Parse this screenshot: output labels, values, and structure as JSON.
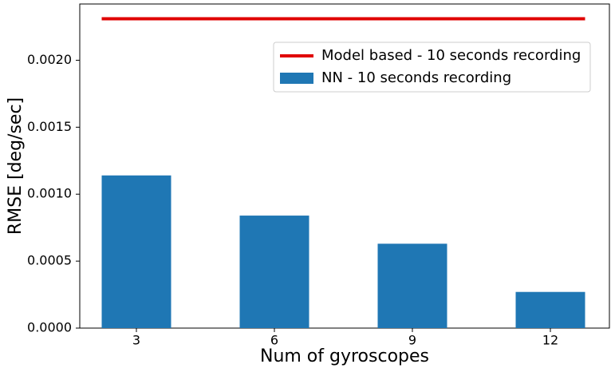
{
  "chart_data": {
    "type": "bar",
    "xlabel": "Num of gyroscopes",
    "ylabel": "RMSE [deg/sec]",
    "categories": [
      "3",
      "6",
      "9",
      "12"
    ],
    "series": [
      {
        "name": "Model based - 10 seconds recording",
        "type": "line",
        "color": "#e00000",
        "values": [
          0.00231,
          0.00231,
          0.00231,
          0.00231
        ]
      },
      {
        "name": "NN - 10 seconds recording",
        "type": "bar",
        "color": "#1f77b4",
        "values": [
          0.00114,
          0.00084,
          0.00063,
          0.00027
        ]
      }
    ],
    "ylim": [
      0,
      0.00242
    ],
    "yticks": [
      {
        "value": 0,
        "label": "0.0000"
      },
      {
        "value": 0.0005,
        "label": "0.0005"
      },
      {
        "value": 0.001,
        "label": "0.0010"
      },
      {
        "value": 0.0015,
        "label": "0.0015"
      },
      {
        "value": 0.002,
        "label": "0.0020"
      }
    ],
    "legend": "upper right",
    "grid": false
  }
}
